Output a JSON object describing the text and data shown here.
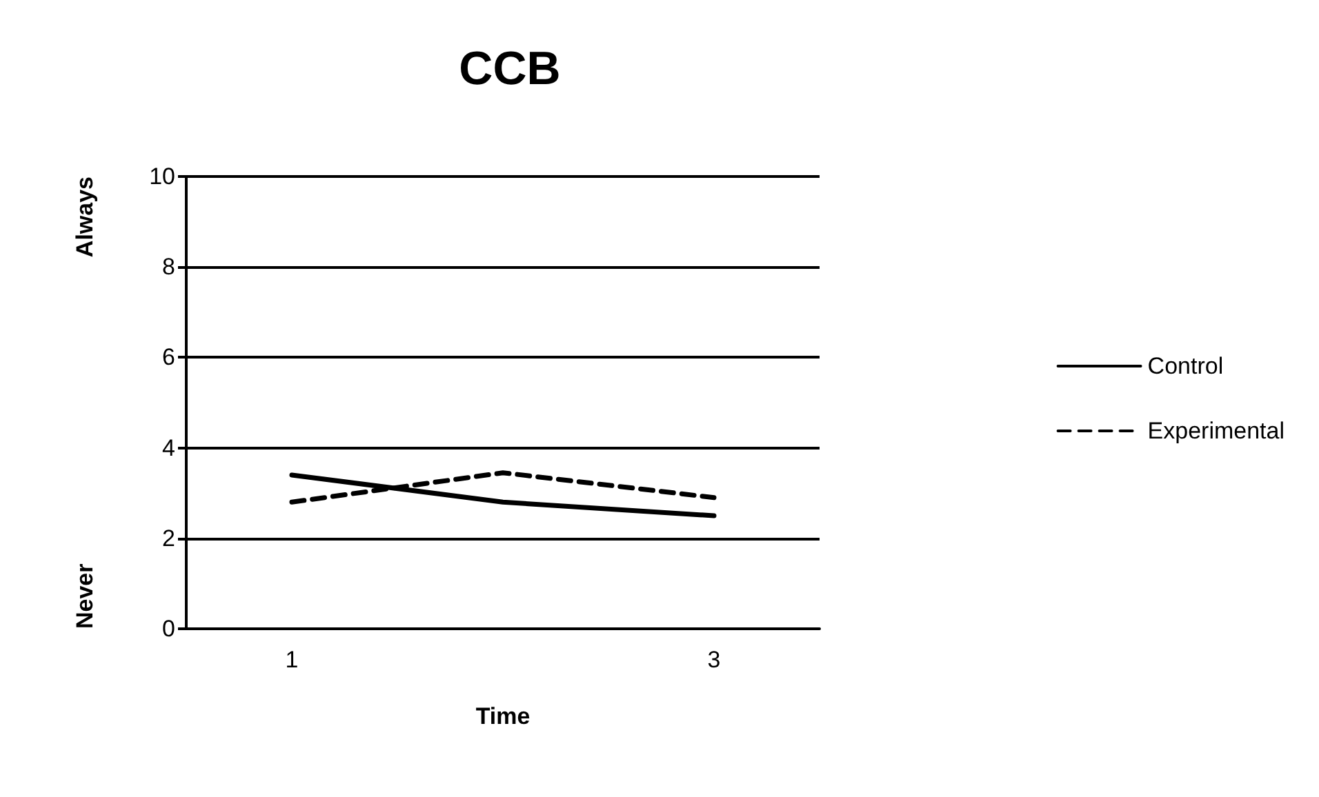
{
  "chart_data": {
    "type": "line",
    "title": "CCB",
    "xlabel": "Time",
    "annotations": [
      "Never",
      "Always"
    ],
    "categories": [
      "1",
      null,
      "3"
    ],
    "series": [
      {
        "name": "Control",
        "color": "#000000",
        "line_style": "solid",
        "values": [
          3.4,
          2.8,
          2.5
        ]
      },
      {
        "name": "Experimental",
        "color": "#000000",
        "line_style": "dashed",
        "values": [
          2.8,
          3.45,
          2.9
        ]
      }
    ],
    "ylim": [
      0,
      10
    ],
    "yticks": [
      0,
      2,
      4,
      6,
      8,
      10
    ],
    "grid": "y",
    "legend": "right",
    "marker": "none"
  }
}
